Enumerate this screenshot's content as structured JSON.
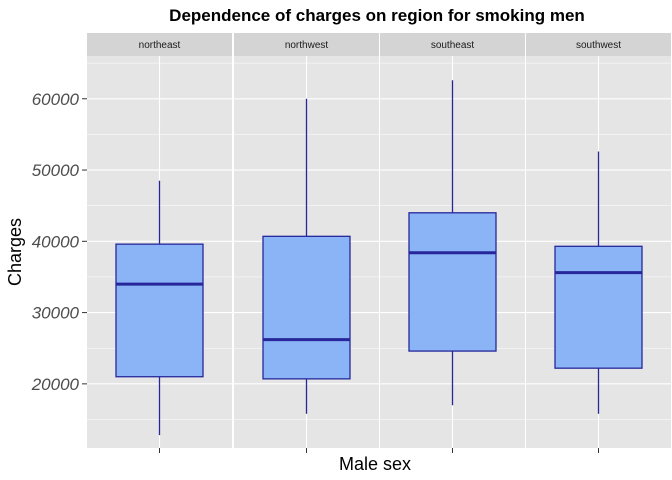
{
  "chart_data": {
    "type": "boxplot",
    "title": "Dependence of charges on region for smoking men",
    "xlabel": "Male sex",
    "ylabel": "Charges",
    "ylim": [
      11000,
      66000
    ],
    "yticks": [
      20000,
      30000,
      40000,
      50000,
      60000
    ],
    "yticks_labels": [
      "20000",
      "30000",
      "40000",
      "50000",
      "60000"
    ],
    "facets": [
      "northeast",
      "northwest",
      "southeast",
      "southwest"
    ],
    "grid": true,
    "colors": {
      "box_fill": "#8ab4f5",
      "box_stroke": "#27279b",
      "panel_bg": "#e5e5e5",
      "strip_bg": "#d4d4d4",
      "grid": "#ffffff"
    },
    "series": [
      {
        "facet": "northeast",
        "min": 12800,
        "q1": 21000,
        "median": 34000,
        "q3": 39600,
        "max": 48500
      },
      {
        "facet": "northwest",
        "min": 15800,
        "q1": 20700,
        "median": 26200,
        "q3": 40700,
        "max": 60000
      },
      {
        "facet": "southeast",
        "min": 17000,
        "q1": 24600,
        "median": 38400,
        "q3": 44000,
        "max": 62600
      },
      {
        "facet": "southwest",
        "min": 15800,
        "q1": 22200,
        "median": 35600,
        "q3": 39300,
        "max": 52600
      }
    ]
  }
}
